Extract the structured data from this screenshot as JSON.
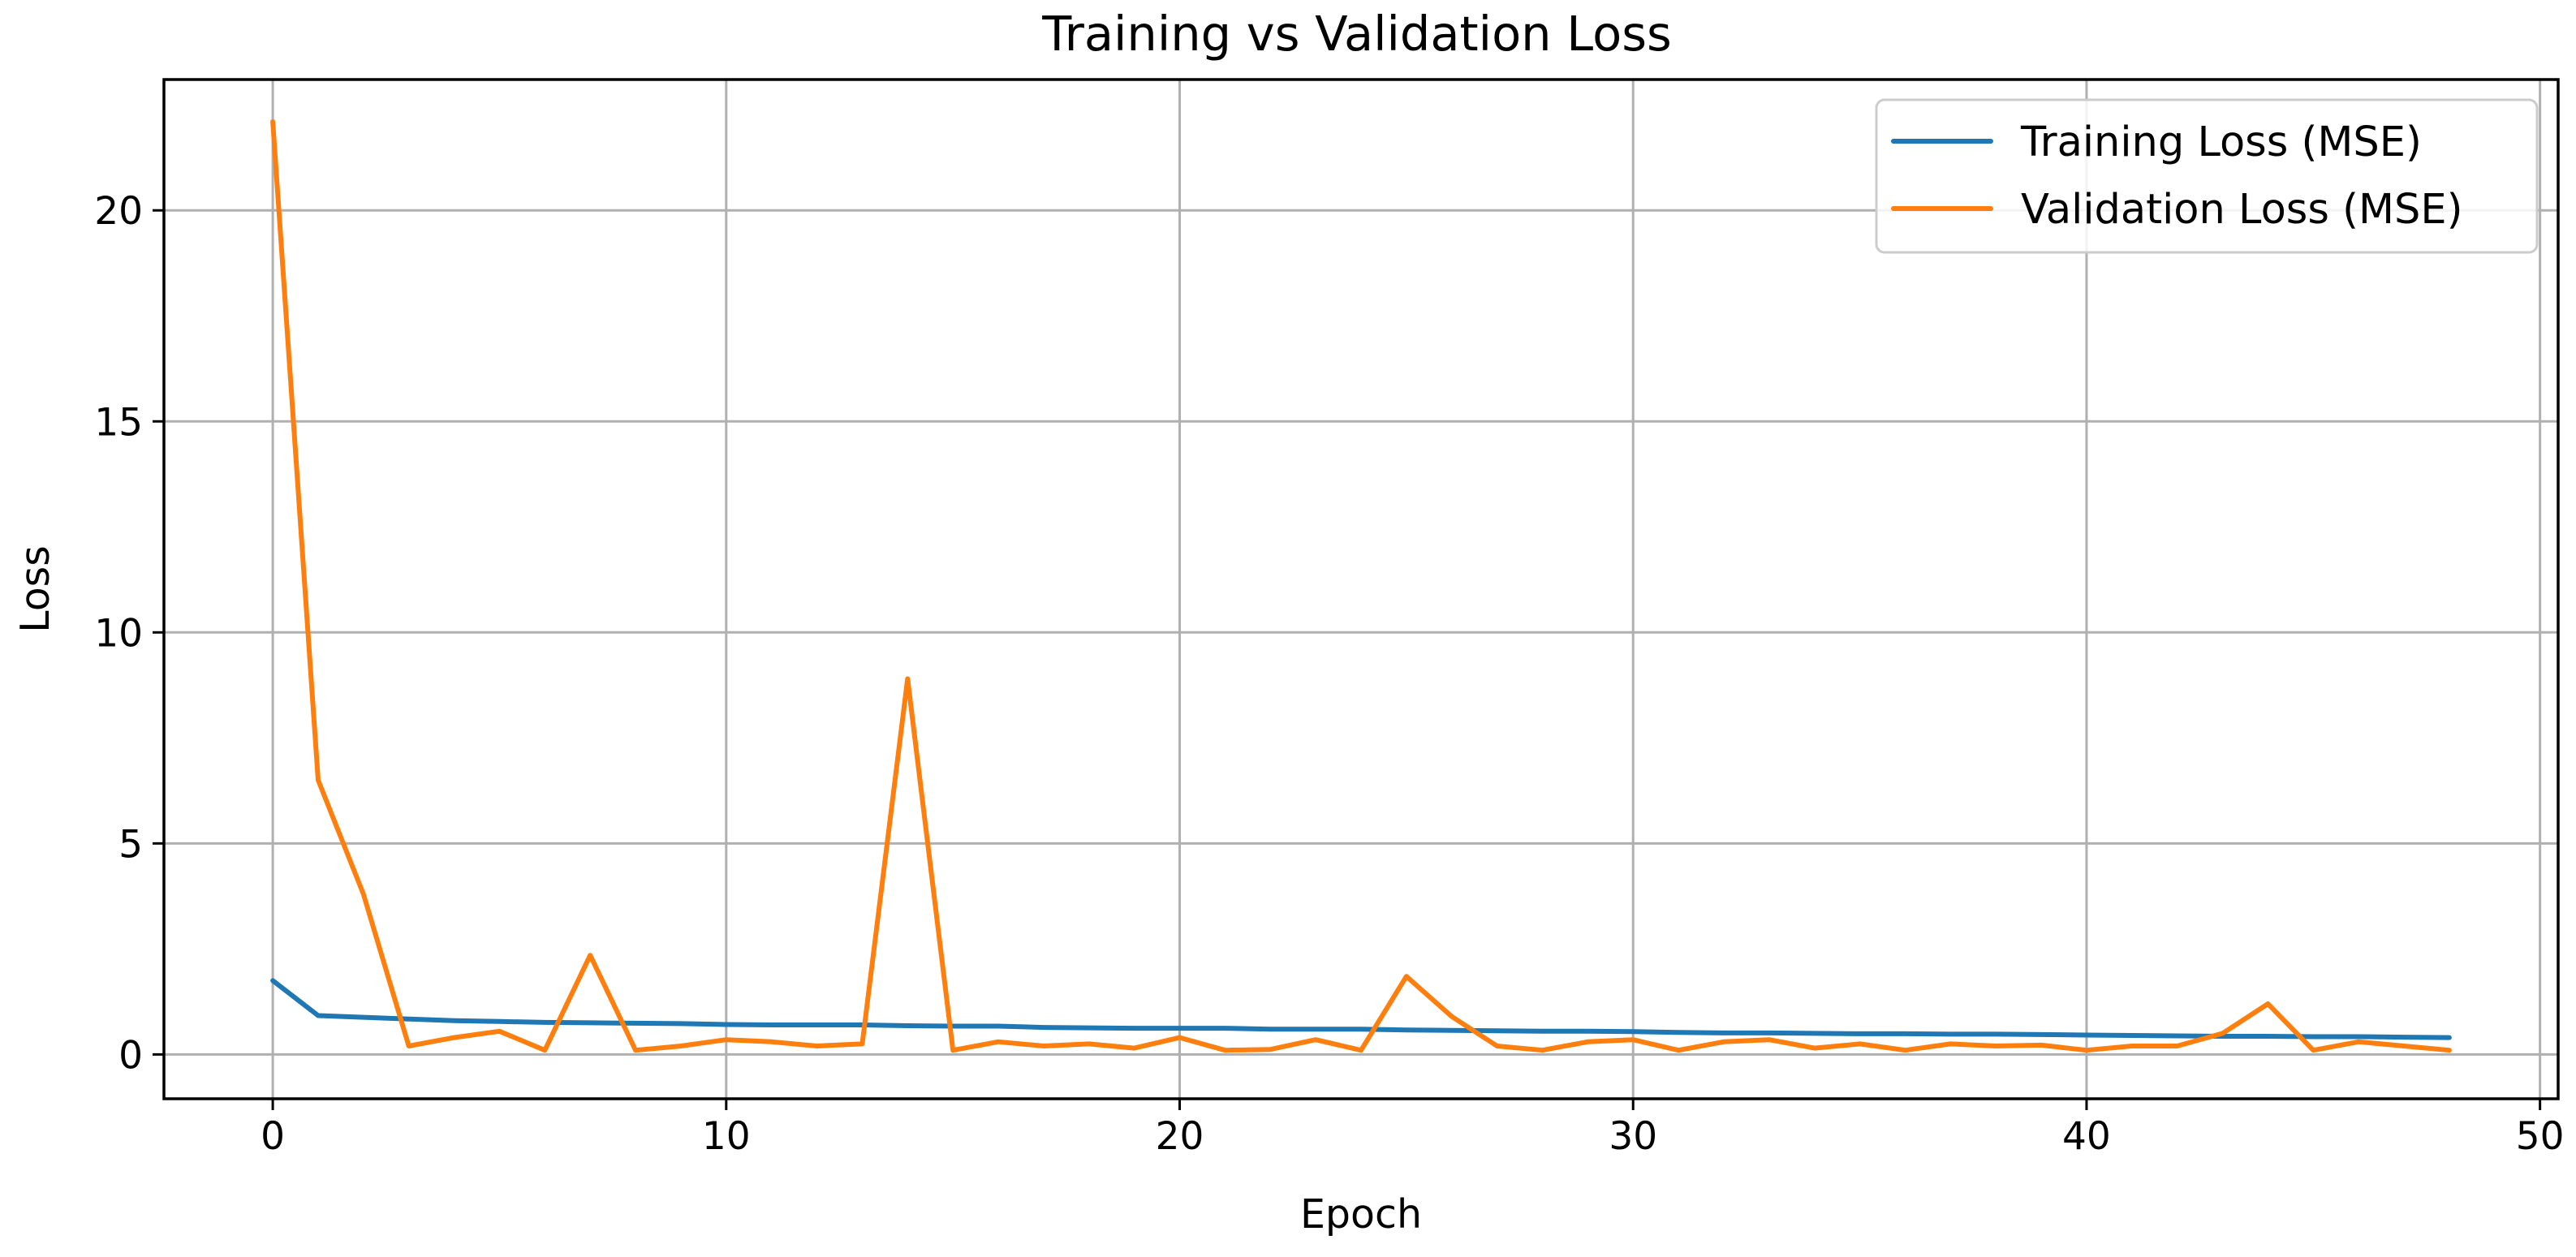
{
  "chart_data": {
    "type": "line",
    "title": "Training vs Validation Loss",
    "xlabel": "Epoch",
    "ylabel": "Loss",
    "xlim": [
      -2.4,
      50.4
    ],
    "ylim": [
      -1.05,
      23.1
    ],
    "xticks": [
      0,
      10,
      20,
      30,
      40,
      50
    ],
    "yticks": [
      0,
      5,
      10,
      15,
      20
    ],
    "grid": true,
    "legend_position": "top-right",
    "x": [
      0,
      1,
      2,
      3,
      4,
      5,
      6,
      7,
      8,
      9,
      10,
      11,
      12,
      13,
      14,
      15,
      16,
      17,
      18,
      19,
      20,
      21,
      22,
      23,
      24,
      25,
      26,
      27,
      28,
      29,
      30,
      31,
      32,
      33,
      34,
      35,
      36,
      37,
      38,
      39,
      40,
      41,
      42,
      43,
      44,
      45,
      46,
      47,
      48
    ],
    "series": [
      {
        "name": "Training Loss (MSE)",
        "color": "#1f77b4",
        "values": [
          1.75,
          0.92,
          0.88,
          0.84,
          0.8,
          0.78,
          0.76,
          0.75,
          0.74,
          0.73,
          0.71,
          0.7,
          0.7,
          0.7,
          0.68,
          0.67,
          0.67,
          0.64,
          0.63,
          0.62,
          0.62,
          0.62,
          0.6,
          0.6,
          0.6,
          0.58,
          0.57,
          0.56,
          0.55,
          0.55,
          0.54,
          0.52,
          0.51,
          0.51,
          0.5,
          0.49,
          0.49,
          0.48,
          0.48,
          0.47,
          0.46,
          0.45,
          0.44,
          0.43,
          0.43,
          0.42,
          0.42,
          0.41,
          0.4
        ]
      },
      {
        "name": "Validation Loss (MSE)",
        "color": "#ff7f0e",
        "values": [
          22.1,
          6.5,
          3.8,
          0.2,
          0.4,
          0.55,
          0.1,
          2.35,
          0.1,
          0.2,
          0.35,
          0.3,
          0.2,
          0.25,
          8.9,
          0.1,
          0.3,
          0.2,
          0.25,
          0.15,
          0.4,
          0.1,
          0.12,
          0.35,
          0.1,
          1.85,
          0.9,
          0.2,
          0.1,
          0.3,
          0.35,
          0.1,
          0.3,
          0.35,
          0.15,
          0.25,
          0.1,
          0.25,
          0.2,
          0.22,
          0.1,
          0.2,
          0.2,
          0.5,
          1.2,
          0.1,
          0.3,
          0.2,
          0.1
        ]
      }
    ]
  }
}
